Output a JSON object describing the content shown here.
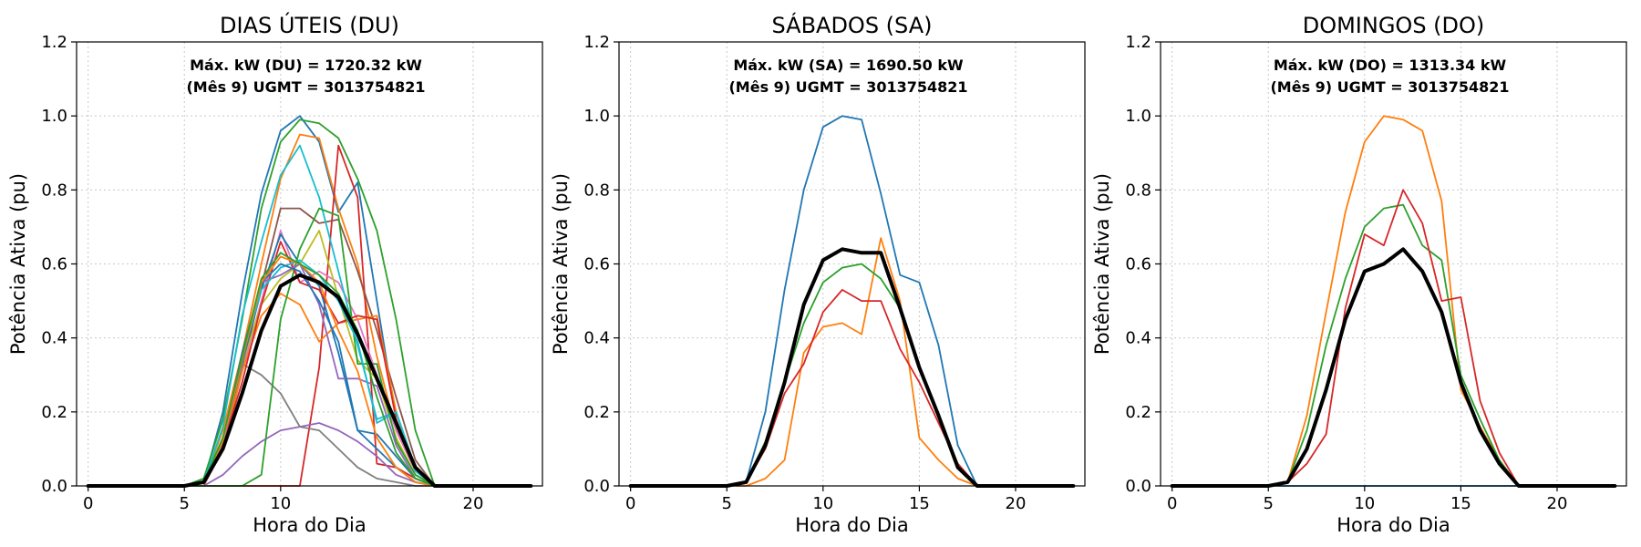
{
  "chart_data": [
    {
      "type": "line",
      "title": "DIAS ÚTEIS (DU)",
      "xlabel": "Hora do Dia",
      "ylabel": "Potência Ativa (pu)",
      "annotation": [
        "Máx. kW (DU) = 1720.32 kW",
        "(Mês 9)  UGMT = 3013754821"
      ],
      "xlim": [
        -0.6,
        23.6
      ],
      "ylim": [
        0,
        1.2
      ],
      "xticks": [
        0,
        5,
        10,
        20
      ],
      "yticks": [
        0.0,
        0.2,
        0.4,
        0.6,
        0.8,
        1.0,
        1.2
      ],
      "grid": true,
      "x": [
        0,
        1,
        2,
        3,
        4,
        5,
        6,
        7,
        8,
        9,
        10,
        11,
        12,
        13,
        14,
        15,
        16,
        17,
        18,
        19,
        20,
        21,
        22,
        23
      ],
      "series": [
        {
          "color": "#1f77b4",
          "values": [
            0,
            0,
            0,
            0,
            0,
            0,
            0.01,
            0.2,
            0.52,
            0.79,
            0.96,
            1.0,
            0.93,
            0.74,
            0.82,
            0.5,
            0.18,
            0.05,
            0,
            0,
            0,
            0,
            0,
            0
          ]
        },
        {
          "color": "#ff7f0e",
          "values": [
            0,
            0,
            0,
            0,
            0,
            0,
            0.01,
            0.15,
            0.36,
            0.6,
            0.83,
            0.95,
            0.94,
            0.75,
            0.6,
            0.35,
            0.15,
            0.04,
            0,
            0,
            0,
            0,
            0,
            0
          ]
        },
        {
          "color": "#2ca02c",
          "values": [
            0,
            0,
            0,
            0,
            0,
            0,
            0.02,
            0.18,
            0.45,
            0.75,
            0.93,
            0.99,
            0.98,
            0.94,
            0.83,
            0.69,
            0.45,
            0.15,
            0,
            0,
            0,
            0,
            0,
            0
          ]
        },
        {
          "color": "#d62728",
          "values": [
            0,
            0,
            0,
            0,
            0,
            0,
            0,
            0,
            0,
            0,
            0,
            0,
            0.32,
            0.92,
            0.78,
            0.06,
            0.05,
            0.02,
            0,
            0,
            0,
            0,
            0,
            0
          ]
        },
        {
          "color": "#9467bd",
          "values": [
            0,
            0,
            0,
            0,
            0,
            0,
            0,
            0.03,
            0.08,
            0.12,
            0.15,
            0.16,
            0.17,
            0.15,
            0.12,
            0.08,
            0.03,
            0.01,
            0,
            0,
            0,
            0,
            0,
            0
          ]
        },
        {
          "color": "#8c564b",
          "values": [
            0,
            0,
            0,
            0,
            0,
            0,
            0,
            0.1,
            0.31,
            0.54,
            0.75,
            0.75,
            0.71,
            0.72,
            0.58,
            0.42,
            0.24,
            0.07,
            0,
            0,
            0,
            0,
            0,
            0
          ]
        },
        {
          "color": "#e377c2",
          "values": [
            0,
            0,
            0,
            0,
            0,
            0,
            0.01,
            0.1,
            0.31,
            0.5,
            0.69,
            0.55,
            0.58,
            0.55,
            0.45,
            0.3,
            0.15,
            0.04,
            0,
            0,
            0,
            0,
            0,
            0
          ]
        },
        {
          "color": "#7f7f7f",
          "values": [
            0,
            0,
            0,
            0,
            0,
            0,
            0.01,
            0.1,
            0.33,
            0.3,
            0.25,
            0.16,
            0.15,
            0.1,
            0.05,
            0.02,
            0.01,
            0,
            0,
            0,
            0,
            0,
            0,
            0
          ]
        },
        {
          "color": "#bcbd22",
          "values": [
            0,
            0,
            0,
            0,
            0,
            0,
            0.01,
            0.13,
            0.33,
            0.49,
            0.56,
            0.6,
            0.69,
            0.51,
            0.34,
            0.29,
            0.13,
            0.03,
            0,
            0,
            0,
            0,
            0,
            0
          ]
        },
        {
          "color": "#17becf",
          "values": [
            0,
            0,
            0,
            0,
            0,
            0,
            0.01,
            0.16,
            0.46,
            0.66,
            0.84,
            0.92,
            0.78,
            0.58,
            0.38,
            0.18,
            0.2,
            0.04,
            0,
            0,
            0,
            0,
            0,
            0
          ]
        },
        {
          "color": "#1f77b4",
          "values": [
            0,
            0,
            0,
            0,
            0,
            0,
            0.01,
            0.13,
            0.33,
            0.53,
            0.68,
            0.6,
            0.54,
            0.36,
            0.15,
            0.14,
            0.08,
            0.02,
            0,
            0,
            0,
            0,
            0,
            0
          ]
        },
        {
          "color": "#ff7f0e",
          "values": [
            0,
            0,
            0,
            0,
            0,
            0,
            0.01,
            0.1,
            0.31,
            0.46,
            0.52,
            0.49,
            0.39,
            0.44,
            0.45,
            0.46,
            0.2,
            0.05,
            0,
            0,
            0,
            0,
            0,
            0
          ]
        },
        {
          "color": "#2ca02c",
          "values": [
            0,
            0,
            0,
            0,
            0,
            0,
            0,
            0,
            0,
            0.03,
            0.45,
            0.64,
            0.75,
            0.73,
            0.33,
            0.33,
            0.12,
            0.03,
            0,
            0,
            0,
            0,
            0,
            0
          ]
        },
        {
          "color": "#d62728",
          "values": [
            0,
            0,
            0,
            0,
            0,
            0,
            0.01,
            0.11,
            0.28,
            0.49,
            0.66,
            0.55,
            0.53,
            0.44,
            0.46,
            0.45,
            0.18,
            0.05,
            0,
            0,
            0,
            0,
            0,
            0
          ]
        },
        {
          "color": "#9467bd",
          "values": [
            0,
            0,
            0,
            0,
            0,
            0,
            0.01,
            0.11,
            0.34,
            0.55,
            0.57,
            0.6,
            0.49,
            0.29,
            0.29,
            0.27,
            0.11,
            0.02,
            0,
            0,
            0,
            0,
            0,
            0
          ]
        },
        {
          "color": "#17becf",
          "values": [
            0,
            0,
            0,
            0,
            0,
            0,
            0.01,
            0.12,
            0.35,
            0.53,
            0.59,
            0.61,
            0.57,
            0.5,
            0.39,
            0.17,
            0.2,
            0.05,
            0,
            0,
            0,
            0,
            0,
            0
          ]
        },
        {
          "color": "#1f77b4",
          "values": [
            0,
            0,
            0,
            0,
            0,
            0,
            0.01,
            0.12,
            0.36,
            0.55,
            0.6,
            0.58,
            0.5,
            0.39,
            0.15,
            0.1,
            0.05,
            0.01,
            0,
            0,
            0,
            0,
            0,
            0
          ]
        },
        {
          "color": "#ff7f0e",
          "values": [
            0,
            0,
            0,
            0,
            0,
            0,
            0.01,
            0.12,
            0.34,
            0.55,
            0.62,
            0.6,
            0.55,
            0.42,
            0.31,
            0.13,
            0.05,
            0.01,
            0,
            0,
            0,
            0,
            0,
            0
          ]
        },
        {
          "color": "#2ca02c",
          "values": [
            0,
            0,
            0,
            0,
            0,
            0,
            0.01,
            0.13,
            0.35,
            0.56,
            0.63,
            0.6,
            0.57,
            0.52,
            0.42,
            0.24,
            0.09,
            0.02,
            0,
            0,
            0,
            0,
            0,
            0
          ]
        },
        {
          "color": "#000000",
          "bold": true,
          "values": [
            0,
            0,
            0,
            0,
            0,
            0,
            0.01,
            0.1,
            0.25,
            0.42,
            0.54,
            0.57,
            0.55,
            0.51,
            0.41,
            0.29,
            0.17,
            0.05,
            0,
            0,
            0,
            0,
            0,
            0
          ]
        }
      ]
    },
    {
      "type": "line",
      "title": "SÁBADOS (SA)",
      "xlabel": "Hora do Dia",
      "ylabel": "Potência Ativa (pu)",
      "annotation": [
        "Máx. kW (SA) = 1690.50 kW",
        "(Mês 9)  UGMT = 3013754821"
      ],
      "xlim": [
        -0.6,
        23.6
      ],
      "ylim": [
        0,
        1.2
      ],
      "xticks": [
        0,
        5,
        10,
        15,
        20
      ],
      "yticks": [
        0.0,
        0.2,
        0.4,
        0.6,
        0.8,
        1.0,
        1.2
      ],
      "grid": true,
      "x": [
        0,
        1,
        2,
        3,
        4,
        5,
        6,
        7,
        8,
        9,
        10,
        11,
        12,
        13,
        14,
        15,
        16,
        17,
        18,
        19,
        20,
        21,
        22,
        23
      ],
      "series": [
        {
          "color": "#1f77b4",
          "values": [
            0,
            0,
            0,
            0,
            0,
            0,
            0.01,
            0.2,
            0.53,
            0.8,
            0.97,
            1.0,
            0.99,
            0.79,
            0.57,
            0.55,
            0.38,
            0.11,
            0,
            0,
            0,
            0,
            0,
            0
          ]
        },
        {
          "color": "#ff7f0e",
          "values": [
            0,
            0,
            0,
            0,
            0,
            0,
            0,
            0.02,
            0.07,
            0.36,
            0.43,
            0.44,
            0.41,
            0.67,
            0.5,
            0.13,
            0.07,
            0.02,
            0,
            0,
            0,
            0,
            0,
            0
          ]
        },
        {
          "color": "#2ca02c",
          "values": [
            0,
            0,
            0,
            0,
            0,
            0,
            0.01,
            0.12,
            0.28,
            0.44,
            0.55,
            0.59,
            0.6,
            0.56,
            0.48,
            0.32,
            0.19,
            0.06,
            0,
            0,
            0,
            0,
            0,
            0
          ]
        },
        {
          "color": "#d62728",
          "values": [
            0,
            0,
            0,
            0,
            0,
            0,
            0.01,
            0.1,
            0.25,
            0.33,
            0.47,
            0.53,
            0.5,
            0.5,
            0.37,
            0.28,
            0.17,
            0.06,
            0,
            0,
            0,
            0,
            0,
            0
          ]
        },
        {
          "color": "#000000",
          "bold": true,
          "values": [
            0,
            0,
            0,
            0,
            0,
            0,
            0.01,
            0.11,
            0.28,
            0.49,
            0.61,
            0.64,
            0.63,
            0.63,
            0.48,
            0.32,
            0.19,
            0.05,
            0,
            0,
            0,
            0,
            0,
            0
          ]
        }
      ]
    },
    {
      "type": "line",
      "title": "DOMINGOS (DO)",
      "xlabel": "Hora do Dia",
      "ylabel": "Potência Ativa (pu)",
      "annotation": [
        "Máx. kW (DO) = 1313.34 kW",
        "(Mês 9)  UGMT = 3013754821"
      ],
      "xlim": [
        -0.6,
        23.6
      ],
      "ylim": [
        0,
        1.2
      ],
      "xticks": [
        0,
        5,
        10,
        15,
        20
      ],
      "yticks": [
        0.0,
        0.2,
        0.4,
        0.6,
        0.8,
        1.0,
        1.2
      ],
      "grid": true,
      "x": [
        0,
        1,
        2,
        3,
        4,
        5,
        6,
        7,
        8,
        9,
        10,
        11,
        12,
        13,
        14,
        15,
        16,
        17,
        18,
        19,
        20,
        21,
        22,
        23
      ],
      "series": [
        {
          "color": "#1f77b4",
          "values": [
            0,
            0,
            0,
            0,
            0,
            0,
            0,
            0,
            0,
            0,
            0,
            0,
            0,
            0,
            0,
            0,
            0,
            0,
            0,
            0,
            0,
            0,
            0,
            0
          ]
        },
        {
          "color": "#ff7f0e",
          "values": [
            0,
            0,
            0,
            0,
            0,
            0,
            0.01,
            0.19,
            0.47,
            0.74,
            0.93,
            1.0,
            0.99,
            0.96,
            0.77,
            0.26,
            0.16,
            0.07,
            0,
            0,
            0,
            0,
            0,
            0
          ]
        },
        {
          "color": "#2ca02c",
          "values": [
            0,
            0,
            0,
            0,
            0,
            0,
            0.01,
            0.15,
            0.38,
            0.56,
            0.7,
            0.75,
            0.76,
            0.65,
            0.61,
            0.3,
            0.18,
            0.07,
            0,
            0,
            0,
            0,
            0,
            0
          ]
        },
        {
          "color": "#d62728",
          "values": [
            0,
            0,
            0,
            0,
            0,
            0,
            0.01,
            0.06,
            0.14,
            0.48,
            0.68,
            0.65,
            0.8,
            0.71,
            0.5,
            0.51,
            0.23,
            0.09,
            0,
            0,
            0,
            0,
            0,
            0
          ]
        },
        {
          "color": "#000000",
          "bold": true,
          "values": [
            0,
            0,
            0,
            0,
            0,
            0,
            0.01,
            0.1,
            0.26,
            0.45,
            0.58,
            0.6,
            0.64,
            0.58,
            0.47,
            0.28,
            0.15,
            0.06,
            0,
            0,
            0,
            0,
            0,
            0
          ]
        }
      ]
    }
  ]
}
